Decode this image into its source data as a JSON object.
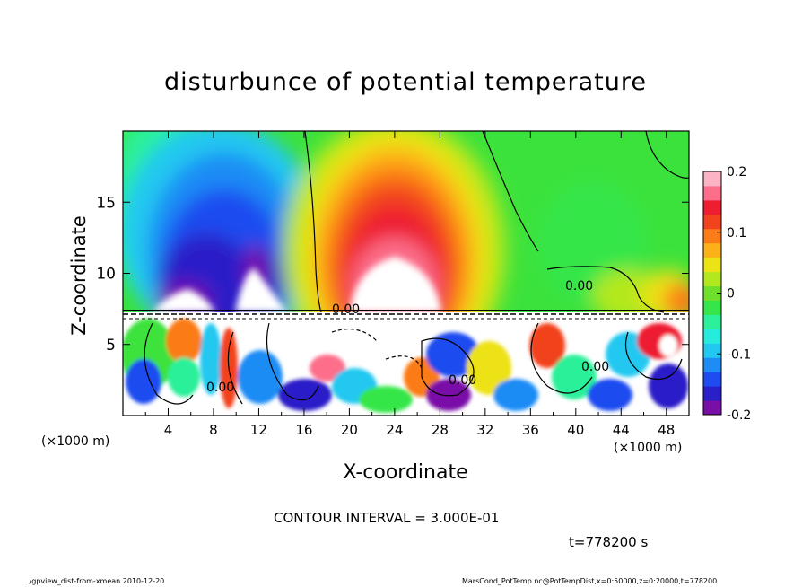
{
  "chart_data": {
    "type": "heatmap",
    "title": "disturbunce of potential temperature",
    "xlabel": "X-coordinate",
    "ylabel": "Z-coordinate",
    "x_unit_left": "(×1000 m)",
    "x_unit_right": "(×1000 m)",
    "xlim": [
      0,
      50
    ],
    "ylim": [
      0,
      20
    ],
    "x_ticks": [
      4,
      8,
      12,
      16,
      20,
      24,
      28,
      32,
      36,
      40,
      44,
      48
    ],
    "y_ticks": [
      5,
      10,
      15
    ],
    "colorbar": {
      "range": [
        -0.2,
        0.2
      ],
      "tick_labels": [
        "0.2",
        "0.1",
        "0",
        "-0.1",
        "-0.2"
      ],
      "colors": [
        "#7a0fa8",
        "#2a1fc8",
        "#1f4cf0",
        "#1e8cf5",
        "#22c8f0",
        "#25ecdc",
        "#2cf09a",
        "#34e64a",
        "#6ee02c",
        "#b4e81e",
        "#ede214",
        "#fdb118",
        "#fb7c18",
        "#f2431e",
        "#ee1e30",
        "#fc6e8a",
        "#fcb4c4"
      ]
    },
    "contour_label": "0.00",
    "annotations": [
      "CONTOUR INTERVAL = 3.000E-01",
      "t=778200 s"
    ]
  },
  "footer": {
    "left": "./gpview_dist-from-xmean 2010-12-20",
    "right": "MarsCond_PotTemp.nc@PotTempDist,x=0:50000,z=0:20000,t=778200"
  }
}
